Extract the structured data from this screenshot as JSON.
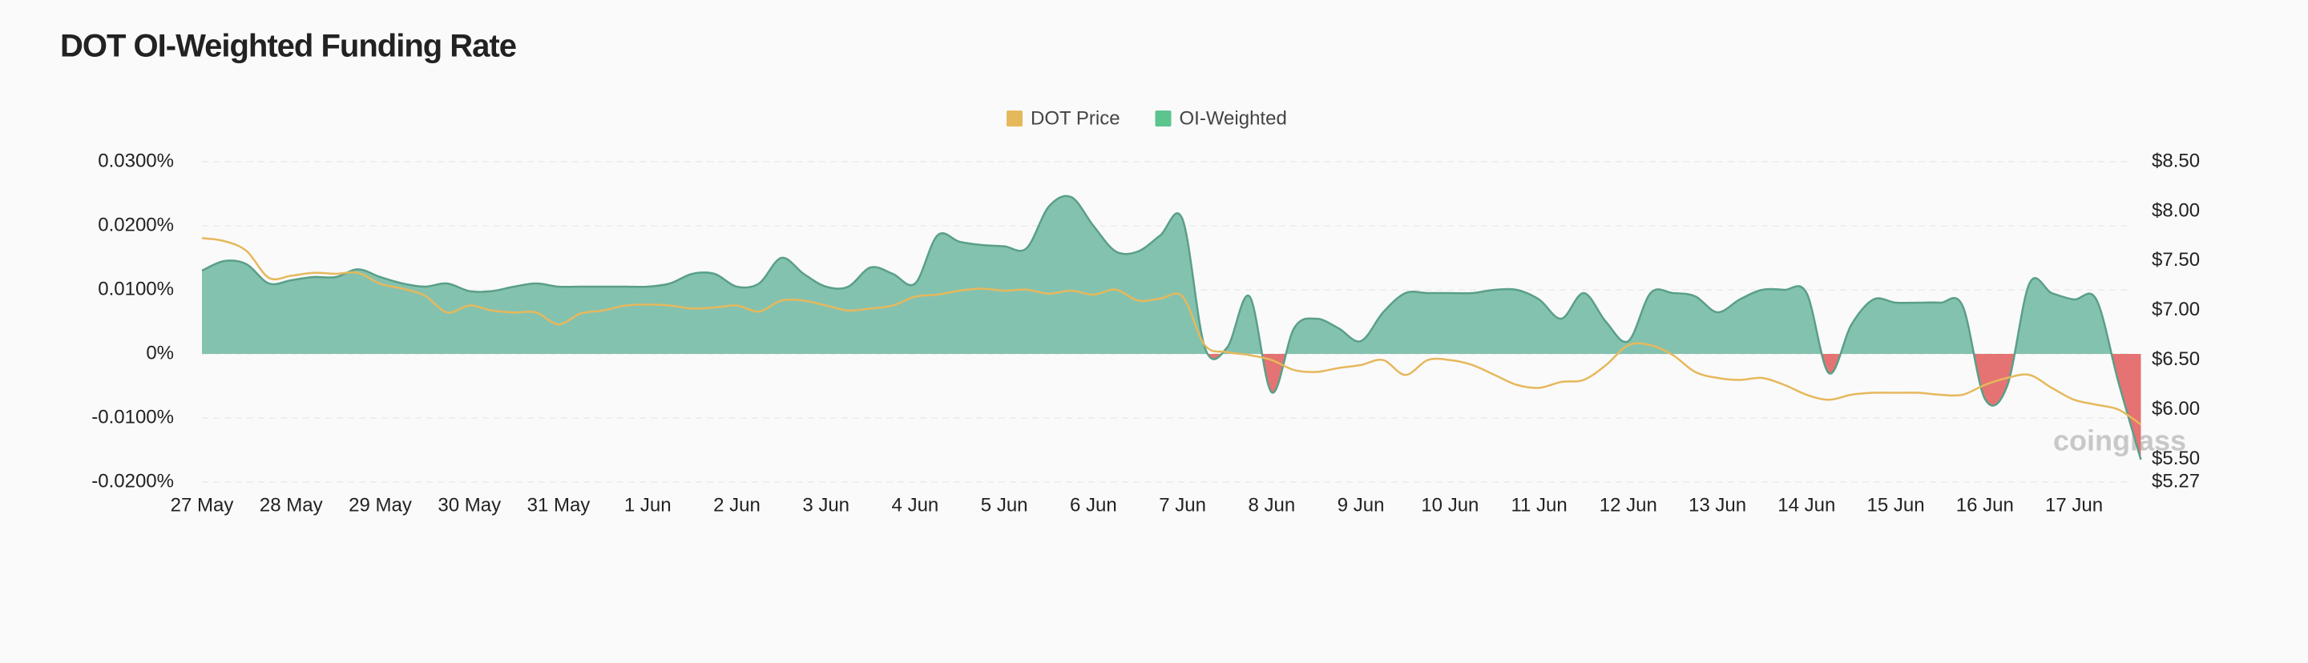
{
  "chart_data": {
    "type": "area",
    "title": "DOT OI-Weighted Funding Rate",
    "watermark": "coinglass",
    "categories": [
      "27 May",
      null,
      null,
      null,
      "28 May",
      null,
      null,
      null,
      "29 May",
      null,
      null,
      null,
      "30 May",
      null,
      null,
      null,
      "31 May",
      null,
      null,
      null,
      "1 Jun",
      null,
      null,
      null,
      "2 Jun",
      null,
      null,
      null,
      "3 Jun",
      null,
      null,
      null,
      "4 Jun",
      null,
      null,
      null,
      "5 Jun",
      null,
      null,
      null,
      "6 Jun",
      null,
      null,
      null,
      "7 Jun",
      null,
      null,
      null,
      "8 Jun",
      null,
      null,
      null,
      "9 Jun",
      null,
      null,
      null,
      "10 Jun",
      null,
      null,
      null,
      "11 Jun",
      null,
      null,
      null,
      "12 Jun",
      null,
      null,
      null,
      "13 Jun",
      null,
      null,
      null,
      "14 Jun",
      null,
      null,
      null,
      "15 Jun",
      null,
      null,
      null,
      "16 Jun",
      null,
      null,
      null,
      "17 Jun",
      null,
      null,
      null
    ],
    "series": [
      {
        "name": "DOT Price",
        "type": "line",
        "axis": "y2",
        "color": "#e6b85c",
        "values": [
          7.73,
          7.7,
          7.6,
          7.33,
          7.35,
          7.38,
          7.37,
          7.38,
          7.27,
          7.22,
          7.15,
          6.98,
          7.05,
          7.0,
          6.98,
          6.98,
          6.86,
          6.97,
          7.0,
          7.05,
          7.06,
          7.05,
          7.02,
          7.03,
          7.05,
          6.99,
          7.1,
          7.1,
          7.05,
          7.0,
          7.02,
          7.05,
          7.14,
          7.16,
          7.2,
          7.22,
          7.2,
          7.21,
          7.17,
          7.2,
          7.16,
          7.21,
          7.1,
          7.12,
          7.14,
          6.65,
          6.58,
          6.55,
          6.5,
          6.4,
          6.38,
          6.42,
          6.45,
          6.5,
          6.35,
          6.5,
          6.5,
          6.45,
          6.35,
          6.25,
          6.22,
          6.28,
          6.3,
          6.45,
          6.65,
          6.65,
          6.55,
          6.38,
          6.32,
          6.3,
          6.32,
          6.25,
          6.15,
          6.1,
          6.15,
          6.17,
          6.17,
          6.17,
          6.15,
          6.15,
          6.25,
          6.32,
          6.35,
          6.22,
          6.1,
          6.05,
          6.0,
          5.85
        ]
      },
      {
        "name": "OI-Weighted",
        "type": "area",
        "color": "#5cc48d",
        "fill": "#84c2b0",
        "line_color": "#5a9f88",
        "negative_color": "#e57373",
        "values": [
          0.013,
          0.0145,
          0.014,
          0.011,
          0.0115,
          0.012,
          0.012,
          0.0132,
          0.012,
          0.011,
          0.0105,
          0.011,
          0.0098,
          0.0098,
          0.0105,
          0.011,
          0.0105,
          0.0105,
          0.0105,
          0.0105,
          0.0105,
          0.011,
          0.0125,
          0.0125,
          0.0105,
          0.011,
          0.015,
          0.0125,
          0.0105,
          0.0105,
          0.0135,
          0.0125,
          0.011,
          0.0185,
          0.0175,
          0.017,
          0.0168,
          0.0165,
          0.023,
          0.0245,
          0.02,
          0.016,
          0.016,
          0.0185,
          0.021,
          0.001,
          0.001,
          0.009,
          -0.006,
          0.004,
          0.0055,
          0.004,
          0.002,
          0.0065,
          0.0095,
          0.0095,
          0.0095,
          0.0095,
          0.01,
          0.01,
          0.0085,
          0.0055,
          0.0095,
          0.005,
          0.002,
          0.0095,
          0.0095,
          0.009,
          0.0065,
          0.0085,
          0.01,
          0.01,
          0.0095,
          -0.003,
          0.0045,
          0.0085,
          0.008,
          0.008,
          0.008,
          0.0075,
          -0.007,
          -0.005,
          0.011,
          0.0095,
          0.0085,
          0.0085,
          -0.0045,
          -0.0165
        ]
      }
    ],
    "ylim": [
      -0.02,
      0.03
    ],
    "yticks": [
      {
        "value": -0.02,
        "label": "-0.0200%"
      },
      {
        "value": -0.01,
        "label": "-0.0100%"
      },
      {
        "value": 0,
        "label": "0%"
      },
      {
        "value": 0.01,
        "label": "0.0100%"
      },
      {
        "value": 0.02,
        "label": "0.0200%"
      },
      {
        "value": 0.03,
        "label": "0.0300%"
      }
    ],
    "y2lim": [
      5.27,
      8.5
    ],
    "y2ticks": [
      {
        "value": 5.27,
        "label": "$5.27"
      },
      {
        "value": 5.5,
        "label": "$5.50"
      },
      {
        "value": 6,
        "label": "$6.00"
      },
      {
        "value": 6.5,
        "label": "$6.50"
      },
      {
        "value": 7,
        "label": "$7.00"
      },
      {
        "value": 7.5,
        "label": "$7.50"
      },
      {
        "value": 8,
        "label": "$8.00"
      },
      {
        "value": 8.5,
        "label": "$8.50"
      }
    ],
    "grid": true,
    "legend": "top"
  }
}
